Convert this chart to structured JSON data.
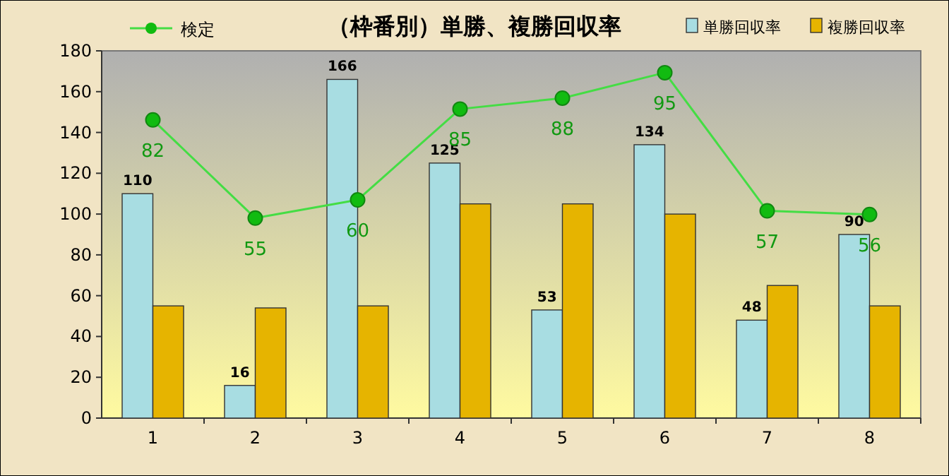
{
  "chart_data": {
    "type": "bar",
    "title": "（枠番別）単勝、複勝回収率",
    "categories": [
      "1",
      "2",
      "3",
      "4",
      "5",
      "6",
      "7",
      "8"
    ],
    "series": [
      {
        "name": "単勝回収率",
        "color": "#a8dde2",
        "values": [
          110,
          16,
          166,
          125,
          53,
          134,
          48,
          90
        ],
        "value_labels": [
          "110",
          "16",
          "166",
          "125",
          "53",
          "134",
          "48",
          "90"
        ]
      },
      {
        "name": "複勝回収率",
        "color": "#e6b400",
        "values": [
          55,
          54,
          55,
          105,
          105,
          100,
          65,
          55
        ]
      },
      {
        "name": "検定",
        "type": "line",
        "axis": "y2",
        "color": "#44dd44",
        "marker": "circle",
        "values": [
          82,
          55,
          60,
          85,
          88,
          95,
          57,
          56
        ],
        "value_labels": [
          "82",
          "55",
          "60",
          "85",
          "88",
          "95",
          "57",
          "56"
        ]
      }
    ],
    "ylim": [
      0,
      180
    ],
    "yticks": [
      0,
      20,
      40,
      60,
      80,
      100,
      120,
      140,
      160,
      180
    ],
    "y2lim": [
      0,
      101
    ],
    "legend": "top",
    "grid": false
  }
}
